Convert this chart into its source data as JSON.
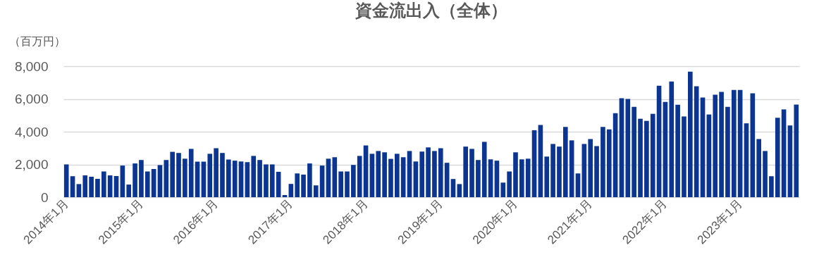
{
  "chart_data": {
    "type": "bar",
    "title": "資金流出入（全体）",
    "ylabel": "（百万円）",
    "categories": [
      "2014年1月",
      null,
      null,
      null,
      null,
      null,
      null,
      null,
      null,
      null,
      null,
      null,
      "2015年1月",
      null,
      null,
      null,
      null,
      null,
      null,
      null,
      null,
      null,
      null,
      null,
      "2016年1月",
      null,
      null,
      null,
      null,
      null,
      null,
      null,
      null,
      null,
      null,
      null,
      "2017年1月",
      null,
      null,
      null,
      null,
      null,
      null,
      null,
      null,
      null,
      null,
      null,
      "2018年1月",
      null,
      null,
      null,
      null,
      null,
      null,
      null,
      null,
      null,
      null,
      null,
      "2019年1月",
      null,
      null,
      null,
      null,
      null,
      null,
      null,
      null,
      null,
      null,
      null,
      "2020年1月",
      null,
      null,
      null,
      null,
      null,
      null,
      null,
      null,
      null,
      null,
      null,
      "2021年1月",
      null,
      null,
      null,
      null,
      null,
      null,
      null,
      null,
      null,
      null,
      null,
      "2022年1月",
      null,
      null,
      null,
      null,
      null,
      null,
      null,
      null,
      null,
      null,
      null,
      "2023年1月",
      null,
      null,
      null,
      null,
      null,
      null,
      null,
      null,
      null
    ],
    "values": [
      2000,
      1280,
      800,
      1330,
      1250,
      1120,
      1570,
      1330,
      1290,
      1930,
      770,
      2060,
      2270,
      1570,
      1720,
      1960,
      2270,
      2770,
      2700,
      2350,
      2950,
      2170,
      2170,
      2650,
      2990,
      2700,
      2300,
      2230,
      2180,
      2140,
      2520,
      2270,
      2000,
      2000,
      1550,
      130,
      810,
      1450,
      1380,
      2060,
      720,
      1930,
      2350,
      2440,
      1570,
      1570,
      1970,
      2520,
      3160,
      2650,
      2820,
      2740,
      2340,
      2650,
      2440,
      2820,
      2180,
      2780,
      3040,
      2820,
      2990,
      2100,
      1110,
      800,
      3090,
      2950,
      2270,
      3380,
      2310,
      2230,
      890,
      1570,
      2740,
      2310,
      2350,
      4090,
      4410,
      2480,
      3250,
      3090,
      4290,
      3470,
      1450,
      3250,
      3550,
      3120,
      4290,
      4140,
      5130,
      6040,
      6000,
      5520,
      4790,
      4660,
      5090,
      6810,
      5820,
      7060,
      5650,
      4930,
      7670,
      6770,
      6090,
      5050,
      6260,
      6430,
      5520,
      6550,
      6550,
      4510,
      6340,
      3550,
      2820,
      1280,
      4850,
      5360,
      4380,
      5660
    ],
    "color": "#0b3590",
    "ylim": [
      0,
      8000
    ],
    "yticks": [
      0,
      {
        "value": 2000,
        "label": "2,000"
      },
      {
        "value": 4000,
        "label": "4,000"
      },
      {
        "value": 6000,
        "label": "6,000"
      },
      {
        "value": 8000,
        "label": "8,000"
      }
    ],
    "grid": "y"
  }
}
